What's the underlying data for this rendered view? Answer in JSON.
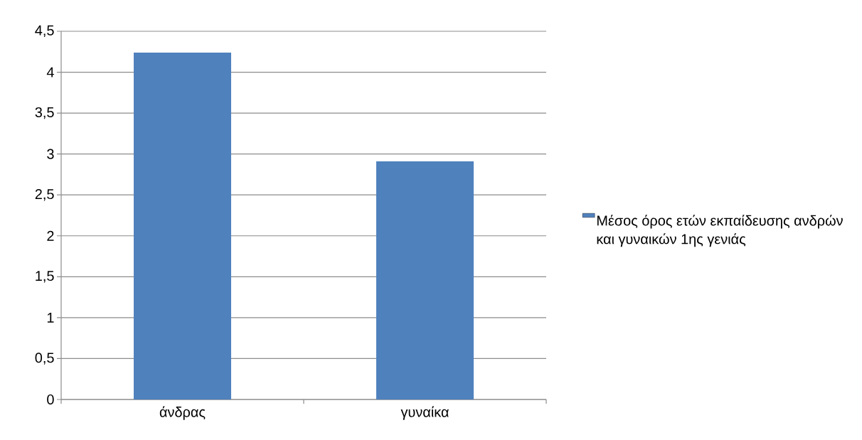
{
  "chart_data": {
    "type": "bar",
    "categories": [
      "άνδρας",
      "γυναίκα"
    ],
    "series": [
      {
        "name": "Μέσος όρος ετών εκπαίδευσης ανδρών και γυναικών 1ης γενιάς",
        "color": "#4f81bd",
        "values": [
          4.24,
          2.91
        ]
      }
    ],
    "ylim": [
      0,
      4.5
    ],
    "yticks": [
      0,
      {
        "value": 0.5,
        "label": "0,5"
      },
      1,
      {
        "value": 1.5,
        "label": "1,5"
      },
      2,
      {
        "value": 2.5,
        "label": "2,5"
      },
      3,
      {
        "value": 3.5,
        "label": "3,5"
      },
      4,
      {
        "value": 4.5,
        "label": "4,5"
      }
    ],
    "grid": "y",
    "legend": "right"
  }
}
